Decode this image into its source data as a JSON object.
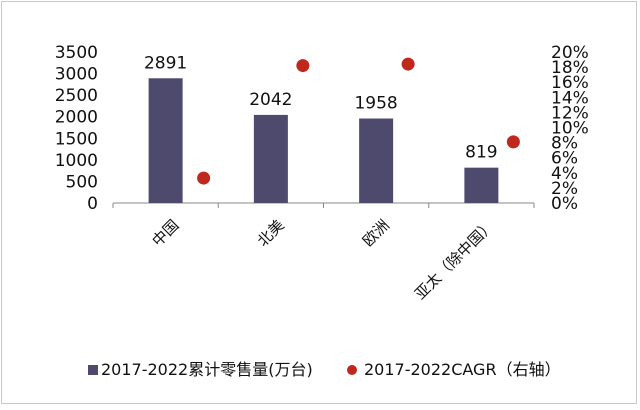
{
  "chart_data": {
    "type": "bar",
    "categories": [
      "中国",
      "北美",
      "欧洲",
      "亚太（除中国）"
    ],
    "series": [
      {
        "name": "2017-2022累计零售量(万台)",
        "type": "bar",
        "axis": "left",
        "values": [
          2891,
          2042,
          1958,
          819
        ],
        "data_labels": [
          "2891",
          "2042",
          "1958",
          "819"
        ]
      },
      {
        "name": "2017-2022CAGR（右轴）",
        "type": "scatter",
        "axis": "right",
        "values": [
          3.3,
          18.2,
          18.4,
          8.1
        ]
      }
    ],
    "y_left": {
      "ylim": [
        0,
        3500
      ],
      "ticks": [
        "3500",
        "3000",
        "2500",
        "2000",
        "1500",
        "1000",
        "500",
        "0"
      ]
    },
    "y_right": {
      "ylim": [
        0,
        20
      ],
      "ticks": [
        "20%",
        "18%",
        "16%",
        "14%",
        "12%",
        "10%",
        "8%",
        "6%",
        "4%",
        "2%",
        "0%"
      ]
    },
    "grid": false,
    "legend": "bottom",
    "colors": {
      "bar": "#4e4a6e",
      "dot": "#c0271d",
      "axis": "#888888"
    }
  }
}
